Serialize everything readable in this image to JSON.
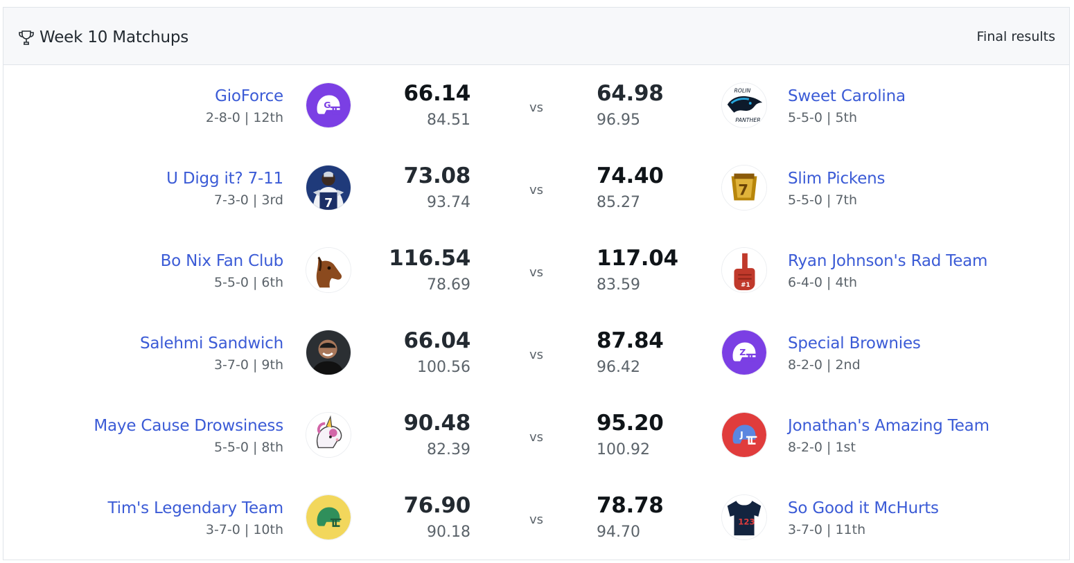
{
  "header": {
    "title": "Week 10 Matchups",
    "final_results": "Final results",
    "icon": "trophy-icon"
  },
  "vs_label": "vs",
  "matchups": [
    {
      "left": {
        "name": "GioForce",
        "record": "2-8-0 | 12th",
        "score": "66.14",
        "projected": "84.51",
        "avatar": "helmet-icon-purple-g",
        "winner": true
      },
      "right": {
        "name": "Sweet Carolina",
        "record": "5-5-0 | 5th",
        "score": "64.98",
        "projected": "96.95",
        "avatar": "panther-logo",
        "winner": false
      }
    },
    {
      "left": {
        "name": "U Digg it? 7-11",
        "record": "7-3-0 | 3rd",
        "score": "73.08",
        "projected": "93.74",
        "avatar": "player-photo-7",
        "winner": false
      },
      "right": {
        "name": "Slim Pickens",
        "record": "5-5-0 | 7th",
        "score": "74.40",
        "projected": "85.27",
        "avatar": "championship-ring",
        "winner": true
      }
    },
    {
      "left": {
        "name": "Bo Nix Fan Club",
        "record": "5-5-0 | 6th",
        "score": "116.54",
        "projected": "78.69",
        "avatar": "horse-head",
        "winner": false
      },
      "right": {
        "name": "Ryan Johnson's Rad Team",
        "record": "6-4-0 | 4th",
        "score": "117.04",
        "projected": "83.59",
        "avatar": "foam-finger",
        "winner": true
      }
    },
    {
      "left": {
        "name": "Salehmi Sandwich",
        "record": "3-7-0 | 9th",
        "score": "66.04",
        "projected": "100.56",
        "avatar": "person-photo",
        "winner": false
      },
      "right": {
        "name": "Special Brownies",
        "record": "8-2-0 | 2nd",
        "score": "87.84",
        "projected": "96.42",
        "avatar": "helmet-icon-purple-z",
        "winner": true
      }
    },
    {
      "left": {
        "name": "Maye Cause Drowsiness",
        "record": "5-5-0 | 8th",
        "score": "90.48",
        "projected": "82.39",
        "avatar": "unicorn-headphones",
        "winner": false
      },
      "right": {
        "name": "Jonathan's Amazing Team",
        "record": "8-2-0 | 1st",
        "score": "95.20",
        "projected": "100.92",
        "avatar": "helmet-icon-red-j",
        "winner": true
      }
    },
    {
      "left": {
        "name": "Tim's Legendary Team",
        "record": "3-7-0 | 10th",
        "score": "76.90",
        "projected": "90.18",
        "avatar": "helmet-icon-yellow",
        "winner": false
      },
      "right": {
        "name": "So Good it McHurts",
        "record": "3-7-0 | 11th",
        "score": "78.78",
        "projected": "94.70",
        "avatar": "jersey-23",
        "winner": true
      }
    }
  ],
  "colors": {
    "link": "#3b5bd6",
    "text": "#232a31",
    "muted": "#5b636a",
    "header_bg": "#f7f8fa",
    "purple": "#7b3fe4",
    "red": "#e03c3c",
    "yellow": "#f2d75c"
  }
}
